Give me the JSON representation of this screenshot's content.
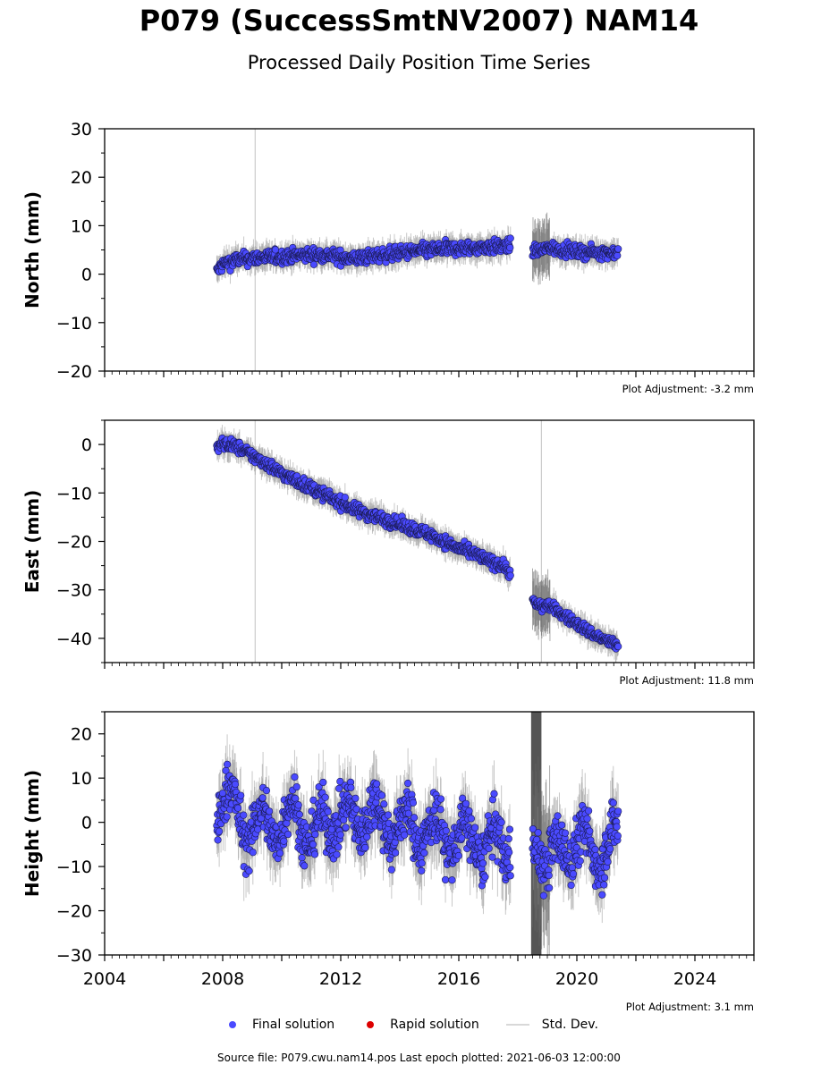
{
  "title": "P079 (SuccessSmtNV2007) NAM14",
  "subtitle": "Processed Daily Position Time Series",
  "colors": {
    "final": "#4a4aff",
    "rapid": "#dd0000",
    "stddev": "#d8d8d8",
    "gap_band": "#555555"
  },
  "legend": {
    "final": "Final solution",
    "rapid": "Rapid solution",
    "stddev": "Std. Dev."
  },
  "footer": "Source file: P079.cwu.nam14.pos  Last epoch plotted: 2021-06-03 12:00:00",
  "chart_data": [
    {
      "type": "scatter",
      "ylabel": "North (mm)",
      "xlim": [
        2004,
        2026
      ],
      "ylim": [
        -20,
        30
      ],
      "yticks": [
        -20,
        -10,
        0,
        10,
        20,
        30
      ],
      "ytick_labels": [
        "−20",
        "−10",
        "0",
        "10",
        "20",
        "30"
      ],
      "adjustment": "Plot Adjustment: -3.2 mm",
      "vlines": [
        2009.1
      ],
      "series": [
        {
          "x": [
            2007.8,
            2008.0,
            2008.5,
            2009.0,
            2009.5,
            2010.0,
            2010.5,
            2011.0,
            2011.5,
            2012.0,
            2012.5,
            2013.0,
            2013.5,
            2014.0,
            2014.5,
            2015.0,
            2015.5,
            2016.0,
            2016.5,
            2017.0,
            2017.5,
            2017.75
          ],
          "y": [
            0.5,
            2.0,
            3.0,
            3.3,
            3.5,
            3.6,
            3.8,
            4.0,
            4.0,
            3.5,
            3.2,
            3.6,
            4.0,
            4.3,
            4.7,
            5.0,
            5.2,
            5.3,
            5.4,
            5.6,
            5.7,
            5.8
          ]
        },
        {
          "x": [
            2018.5,
            2018.8,
            2019.0,
            2019.5,
            2020.0,
            2020.5,
            2021.0,
            2021.4
          ],
          "y": [
            5.0,
            4.8,
            5.5,
            5.0,
            4.6,
            4.5,
            4.4,
            4.5
          ]
        }
      ]
    },
    {
      "type": "scatter",
      "ylabel": "East (mm)",
      "xlim": [
        2004,
        2026
      ],
      "ylim": [
        -45,
        5
      ],
      "yticks": [
        -40,
        -30,
        -20,
        -10,
        0
      ],
      "ytick_labels": [
        "−40",
        "−30",
        "−20",
        "−10",
        "0"
      ],
      "adjustment": "Plot Adjustment: 11.8 mm",
      "vlines": [
        2009.1,
        2018.8
      ],
      "series": [
        {
          "x": [
            2007.8,
            2008.0,
            2008.5,
            2009.0,
            2009.5,
            2010.0,
            2010.5,
            2011.0,
            2011.5,
            2012.0,
            2012.5,
            2013.0,
            2013.5,
            2014.0,
            2014.5,
            2015.0,
            2015.5,
            2016.0,
            2016.5,
            2017.0,
            2017.5,
            2017.75
          ],
          "y": [
            -1.0,
            0.3,
            -0.5,
            -2.3,
            -4.0,
            -6.0,
            -7.5,
            -9.0,
            -10.5,
            -12.0,
            -13.5,
            -14.5,
            -15.5,
            -16.5,
            -17.5,
            -18.5,
            -20.0,
            -21.5,
            -22.5,
            -24.0,
            -25.0,
            -26.5
          ]
        },
        {
          "x": [
            2018.5,
            2018.8,
            2019.0,
            2019.5,
            2020.0,
            2020.5,
            2021.0,
            2021.4
          ],
          "y": [
            -32.5,
            -33.5,
            -33.0,
            -35.0,
            -37.0,
            -39.0,
            -40.5,
            -41.5
          ]
        }
      ]
    },
    {
      "type": "scatter",
      "ylabel": "Height (mm)",
      "xlim": [
        2004,
        2026
      ],
      "ylim": [
        -30,
        25
      ],
      "yticks": [
        -30,
        -20,
        -10,
        0,
        10,
        20
      ],
      "ytick_labels": [
        "−30",
        "−20",
        "−10",
        "0",
        "10",
        "20"
      ],
      "xticks": [
        2004,
        2008,
        2012,
        2016,
        2020,
        2024
      ],
      "xtick_labels": [
        "2004",
        "2008",
        "2012",
        "2016",
        "2020",
        "2024"
      ],
      "adjustment": "Plot Adjustment: 3.1 mm",
      "gap_band": [
        2018.45,
        2018.8
      ],
      "series": [
        {
          "x": [
            2007.8,
            2008.0,
            2008.5,
            2009.0,
            2009.5,
            2010.0,
            2010.5,
            2011.0,
            2011.5,
            2012.0,
            2012.5,
            2013.0,
            2013.5,
            2014.0,
            2014.5,
            2015.0,
            2015.5,
            2016.0,
            2016.5,
            2017.0,
            2017.5,
            2017.75
          ],
          "y": [
            2,
            5,
            3,
            -3,
            1,
            -2,
            3,
            -4,
            0,
            2,
            -1,
            4,
            -2,
            1,
            -3,
            0,
            -5,
            -2,
            -6,
            -3,
            -8,
            -4
          ]
        },
        {
          "x": [
            2018.5,
            2018.8,
            2019.0,
            2019.5,
            2020.0,
            2020.5,
            2021.0,
            2021.4
          ],
          "y": [
            -3,
            -5,
            -10,
            -6,
            -4,
            -7,
            -5,
            -4
          ]
        }
      ]
    }
  ]
}
